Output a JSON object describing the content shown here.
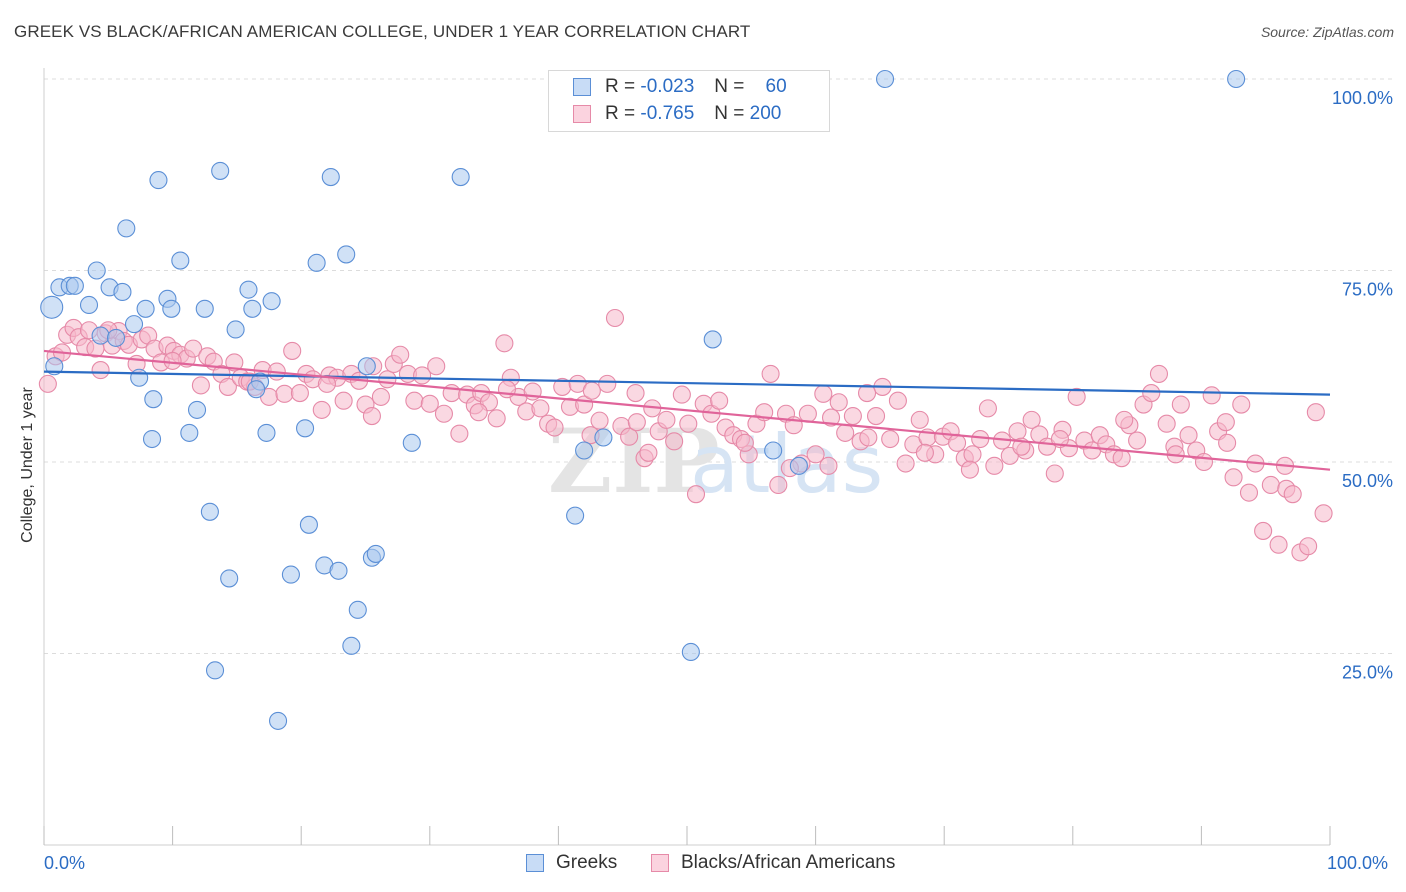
{
  "title": "GREEK VS BLACK/AFRICAN AMERICAN COLLEGE, UNDER 1 YEAR CORRELATION CHART",
  "source": "Source: ZipAtlas.com",
  "watermark": {
    "zip": "ZIP",
    "atlas": "atlas"
  },
  "legend": {
    "greeks": {
      "r_label": "R =",
      "r_value": "-0.023",
      "n_label": "N =",
      "n_value": "60"
    },
    "blacks": {
      "r_label": "R =",
      "r_value": "-0.765",
      "n_label": "N =",
      "n_value": "200"
    }
  },
  "bottom_legend": {
    "greeks": "Greeks",
    "blacks": "Blacks/African Americans"
  },
  "axes": {
    "x_min_label": "0.0%",
    "x_max_label": "100.0%",
    "y_ticks": [
      "100.0%",
      "75.0%",
      "50.0%",
      "25.0%"
    ]
  },
  "colors": {
    "greeks_fill": "#a9c8ee",
    "greeks_stroke": "#5b8fd6",
    "greeks_line": "#2b6cc4",
    "blacks_fill": "#f6b8cb",
    "blacks_stroke": "#e68aa8",
    "blacks_line": "#e0649a",
    "axis_label": "#2b6cc4"
  },
  "chart_data": {
    "type": "scatter",
    "title": "GREEK VS BLACK/AFRICAN AMERICAN COLLEGE, UNDER 1 YEAR CORRELATION CHART",
    "xlabel": "",
    "ylabel": "College, Under 1 year",
    "xlim": [
      0,
      100
    ],
    "ylim": [
      0,
      100
    ],
    "grid": true,
    "series": [
      {
        "name": "Greeks",
        "trend": {
          "x": [
            0,
            100
          ],
          "y": [
            61.8,
            58.8
          ]
        },
        "points": [
          [
            0.6,
            70.2
          ],
          [
            0.8,
            62.5
          ],
          [
            1.2,
            72.8
          ],
          [
            2.0,
            73.0
          ],
          [
            2.4,
            73.0
          ],
          [
            3.5,
            70.5
          ],
          [
            4.1,
            75.0
          ],
          [
            4.4,
            66.5
          ],
          [
            5.1,
            72.8
          ],
          [
            5.6,
            66.2
          ],
          [
            6.1,
            72.2
          ],
          [
            6.4,
            80.5
          ],
          [
            7.0,
            68.0
          ],
          [
            7.4,
            61.0
          ],
          [
            7.9,
            70.0
          ],
          [
            8.4,
            53.0
          ],
          [
            8.5,
            58.2
          ],
          [
            8.9,
            86.8
          ],
          [
            9.6,
            71.3
          ],
          [
            9.9,
            70.0
          ],
          [
            10.6,
            76.3
          ],
          [
            11.3,
            53.8
          ],
          [
            11.9,
            56.8
          ],
          [
            12.5,
            70.0
          ],
          [
            12.9,
            43.5
          ],
          [
            13.7,
            88.0
          ],
          [
            14.4,
            34.8
          ],
          [
            14.9,
            67.3
          ],
          [
            13.3,
            22.8
          ],
          [
            15.9,
            72.5
          ],
          [
            16.2,
            70.0
          ],
          [
            16.8,
            60.5
          ],
          [
            17.3,
            53.8
          ],
          [
            17.7,
            71.0
          ],
          [
            18.2,
            16.2
          ],
          [
            19.2,
            35.3
          ],
          [
            20.3,
            54.4
          ],
          [
            20.6,
            41.8
          ],
          [
            21.2,
            76.0
          ],
          [
            21.8,
            36.5
          ],
          [
            22.3,
            87.2
          ],
          [
            22.9,
            35.8
          ],
          [
            23.5,
            77.1
          ],
          [
            23.9,
            26.0
          ],
          [
            24.4,
            30.7
          ],
          [
            25.1,
            62.5
          ],
          [
            25.5,
            37.5
          ],
          [
            25.8,
            38.0
          ],
          [
            28.6,
            52.5
          ],
          [
            32.4,
            87.2
          ],
          [
            41.3,
            43.0
          ],
          [
            42.0,
            51.5
          ],
          [
            43.5,
            53.2
          ],
          [
            50.3,
            25.2
          ],
          [
            52.0,
            66.0
          ],
          [
            56.7,
            51.5
          ],
          [
            58.7,
            49.5
          ],
          [
            65.4,
            100.0
          ],
          [
            92.7,
            100.0
          ],
          [
            16.5,
            59.5
          ]
        ]
      },
      {
        "name": "Blacks/African Americans",
        "trend": {
          "x": [
            0,
            100
          ],
          "y": [
            64.5,
            49.0
          ]
        },
        "points": [
          [
            0.3,
            60.2
          ],
          [
            0.9,
            63.8
          ],
          [
            1.4,
            64.3
          ],
          [
            1.8,
            66.6
          ],
          [
            2.3,
            67.5
          ],
          [
            2.7,
            66.3
          ],
          [
            3.2,
            65.0
          ],
          [
            3.5,
            67.2
          ],
          [
            4.0,
            64.8
          ],
          [
            4.4,
            62.0
          ],
          [
            4.8,
            66.8
          ],
          [
            5.3,
            65.2
          ],
          [
            5.8,
            67.1
          ],
          [
            6.2,
            65.8
          ],
          [
            6.6,
            65.3
          ],
          [
            7.2,
            62.8
          ],
          [
            7.6,
            66.0
          ],
          [
            8.1,
            66.5
          ],
          [
            8.6,
            64.8
          ],
          [
            9.1,
            63.0
          ],
          [
            9.6,
            65.2
          ],
          [
            10.1,
            64.5
          ],
          [
            10.6,
            64.0
          ],
          [
            11.1,
            63.5
          ],
          [
            11.6,
            64.8
          ],
          [
            12.2,
            60.0
          ],
          [
            12.7,
            63.8
          ],
          [
            13.2,
            63.1
          ],
          [
            13.8,
            61.5
          ],
          [
            14.3,
            59.8
          ],
          [
            14.8,
            63.0
          ],
          [
            15.3,
            61.0
          ],
          [
            15.8,
            60.5
          ],
          [
            16.4,
            59.8
          ],
          [
            17.0,
            62.0
          ],
          [
            17.5,
            58.5
          ],
          [
            18.1,
            61.8
          ],
          [
            18.7,
            58.9
          ],
          [
            19.3,
            64.5
          ],
          [
            19.9,
            59.0
          ],
          [
            20.4,
            61.5
          ],
          [
            20.9,
            60.8
          ],
          [
            21.6,
            56.8
          ],
          [
            22.2,
            61.3
          ],
          [
            22.8,
            61.0
          ],
          [
            23.3,
            58.0
          ],
          [
            23.9,
            61.5
          ],
          [
            24.5,
            60.6
          ],
          [
            25.0,
            57.5
          ],
          [
            25.6,
            62.5
          ],
          [
            26.2,
            58.5
          ],
          [
            26.7,
            60.8
          ],
          [
            27.2,
            62.8
          ],
          [
            27.7,
            64.0
          ],
          [
            28.3,
            61.5
          ],
          [
            28.8,
            58.0
          ],
          [
            29.4,
            61.3
          ],
          [
            30.0,
            57.6
          ],
          [
            30.5,
            62.5
          ],
          [
            31.1,
            56.3
          ],
          [
            31.7,
            59.0
          ],
          [
            32.3,
            53.7
          ],
          [
            32.9,
            58.8
          ],
          [
            33.5,
            57.4
          ],
          [
            34.0,
            59.0
          ],
          [
            34.6,
            57.8
          ],
          [
            35.2,
            55.7
          ],
          [
            35.8,
            65.5
          ],
          [
            36.3,
            61.0
          ],
          [
            36.9,
            58.5
          ],
          [
            37.5,
            56.6
          ],
          [
            38.0,
            59.2
          ],
          [
            38.6,
            57.0
          ],
          [
            39.2,
            55.0
          ],
          [
            39.7,
            54.5
          ],
          [
            40.3,
            59.8
          ],
          [
            40.9,
            57.2
          ],
          [
            41.5,
            60.2
          ],
          [
            42.0,
            57.5
          ],
          [
            42.6,
            59.3
          ],
          [
            43.2,
            55.4
          ],
          [
            43.8,
            60.2
          ],
          [
            44.4,
            68.8
          ],
          [
            44.9,
            54.7
          ],
          [
            45.5,
            53.3
          ],
          [
            46.1,
            55.2
          ],
          [
            46.7,
            50.5
          ],
          [
            47.3,
            57.0
          ],
          [
            47.8,
            54.0
          ],
          [
            48.4,
            55.5
          ],
          [
            49.0,
            52.7
          ],
          [
            49.6,
            58.8
          ],
          [
            50.1,
            55.0
          ],
          [
            50.7,
            45.8
          ],
          [
            51.3,
            57.6
          ],
          [
            51.9,
            56.3
          ],
          [
            52.5,
            58.0
          ],
          [
            53.0,
            54.5
          ],
          [
            53.6,
            53.5
          ],
          [
            54.2,
            53.0
          ],
          [
            54.8,
            51.0
          ],
          [
            55.4,
            55.0
          ],
          [
            56.0,
            56.5
          ],
          [
            56.5,
            61.5
          ],
          [
            57.1,
            47.0
          ],
          [
            57.7,
            56.3
          ],
          [
            58.3,
            54.8
          ],
          [
            58.9,
            49.8
          ],
          [
            59.4,
            56.3
          ],
          [
            60.0,
            51.0
          ],
          [
            60.6,
            58.9
          ],
          [
            61.2,
            55.8
          ],
          [
            61.8,
            57.8
          ],
          [
            62.3,
            53.8
          ],
          [
            62.9,
            56.0
          ],
          [
            63.5,
            52.7
          ],
          [
            64.1,
            53.2
          ],
          [
            64.7,
            56.0
          ],
          [
            65.2,
            59.8
          ],
          [
            65.8,
            53.0
          ],
          [
            66.4,
            58.0
          ],
          [
            67.0,
            49.8
          ],
          [
            67.6,
            52.3
          ],
          [
            68.1,
            55.5
          ],
          [
            68.7,
            53.2
          ],
          [
            69.3,
            51.0
          ],
          [
            69.9,
            53.3
          ],
          [
            70.5,
            54.0
          ],
          [
            71.0,
            52.5
          ],
          [
            71.6,
            50.5
          ],
          [
            72.2,
            51.0
          ],
          [
            72.8,
            53.0
          ],
          [
            73.4,
            57.0
          ],
          [
            73.9,
            49.5
          ],
          [
            74.5,
            52.8
          ],
          [
            75.1,
            50.8
          ],
          [
            75.7,
            54.0
          ],
          [
            76.3,
            51.5
          ],
          [
            76.8,
            55.5
          ],
          [
            77.4,
            53.6
          ],
          [
            78.0,
            52.0
          ],
          [
            78.6,
            48.5
          ],
          [
            79.2,
            54.2
          ],
          [
            79.7,
            51.8
          ],
          [
            80.3,
            58.5
          ],
          [
            80.9,
            52.8
          ],
          [
            81.5,
            51.5
          ],
          [
            82.1,
            53.5
          ],
          [
            82.6,
            52.3
          ],
          [
            83.2,
            51.0
          ],
          [
            83.8,
            50.5
          ],
          [
            84.4,
            54.8
          ],
          [
            85.0,
            52.8
          ],
          [
            85.5,
            57.5
          ],
          [
            86.1,
            59.0
          ],
          [
            86.7,
            61.5
          ],
          [
            87.3,
            55.0
          ],
          [
            87.9,
            52.0
          ],
          [
            88.4,
            57.5
          ],
          [
            89.0,
            53.5
          ],
          [
            89.6,
            51.5
          ],
          [
            90.2,
            50.0
          ],
          [
            90.8,
            58.7
          ],
          [
            91.3,
            54.0
          ],
          [
            91.9,
            55.2
          ],
          [
            92.5,
            48.0
          ],
          [
            93.1,
            57.5
          ],
          [
            93.7,
            46.0
          ],
          [
            94.2,
            49.8
          ],
          [
            94.8,
            41.0
          ],
          [
            95.4,
            47.0
          ],
          [
            96.0,
            39.2
          ],
          [
            96.6,
            46.5
          ],
          [
            97.1,
            45.8
          ],
          [
            97.7,
            38.2
          ],
          [
            98.3,
            39.0
          ],
          [
            98.9,
            56.5
          ],
          [
            99.5,
            43.3
          ],
          [
            72.0,
            49.0
          ],
          [
            58.0,
            49.2
          ],
          [
            47.0,
            51.2
          ],
          [
            36.0,
            59.5
          ],
          [
            25.5,
            56.0
          ],
          [
            16.0,
            60.5
          ],
          [
            42.5,
            53.5
          ],
          [
            64.0,
            59.0
          ],
          [
            84.0,
            55.5
          ],
          [
            96.5,
            49.5
          ],
          [
            22.0,
            60.2
          ],
          [
            61.0,
            49.5
          ],
          [
            79.0,
            53.0
          ],
          [
            54.5,
            52.5
          ],
          [
            10.0,
            63.2
          ],
          [
            33.8,
            56.5
          ],
          [
            68.5,
            51.2
          ],
          [
            88.0,
            51.0
          ],
          [
            5.0,
            67.2
          ],
          [
            46.0,
            59.0
          ],
          [
            76.0,
            52.0
          ],
          [
            92.0,
            52.5
          ]
        ]
      }
    ]
  }
}
